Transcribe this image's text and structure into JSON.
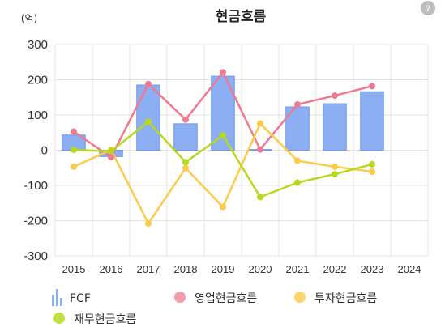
{
  "help": {
    "glyph": "?",
    "icon": "help-icon"
  },
  "chart_data": {
    "type": "bar",
    "title": "현금흐름",
    "unit_label": "(억)",
    "categories": [
      "2015",
      "2016",
      "2017",
      "2018",
      "2019",
      "2020",
      "2021",
      "2022",
      "2023",
      "2024"
    ],
    "ylim": [
      -300,
      300
    ],
    "yticks": [
      300,
      200,
      100,
      0,
      -100,
      -200,
      -300
    ],
    "grid": true,
    "legend_position": "bottom",
    "series": [
      {
        "name": "FCF",
        "type": "bar",
        "color": "#8CAEF2",
        "stroke": "#6E96EC",
        "values": [
          43,
          -18,
          185,
          75,
          210,
          2,
          123,
          132,
          166,
          null
        ]
      },
      {
        "name": "영업현금흐름",
        "type": "line",
        "color": "#EE7A92",
        "values": [
          53,
          -20,
          188,
          87,
          221,
          2,
          130,
          155,
          182,
          null
        ]
      },
      {
        "name": "투자현금흐름",
        "type": "line",
        "color": "#FCCB4A",
        "values": [
          -47,
          1,
          -208,
          -51,
          -161,
          76,
          -30,
          -47,
          -61,
          null
        ]
      },
      {
        "name": "재무현금흐름",
        "type": "line",
        "color": "#B5D91F",
        "values": [
          1,
          -3,
          81,
          -34,
          42,
          -133,
          -92,
          -68,
          -40,
          null
        ]
      }
    ]
  }
}
